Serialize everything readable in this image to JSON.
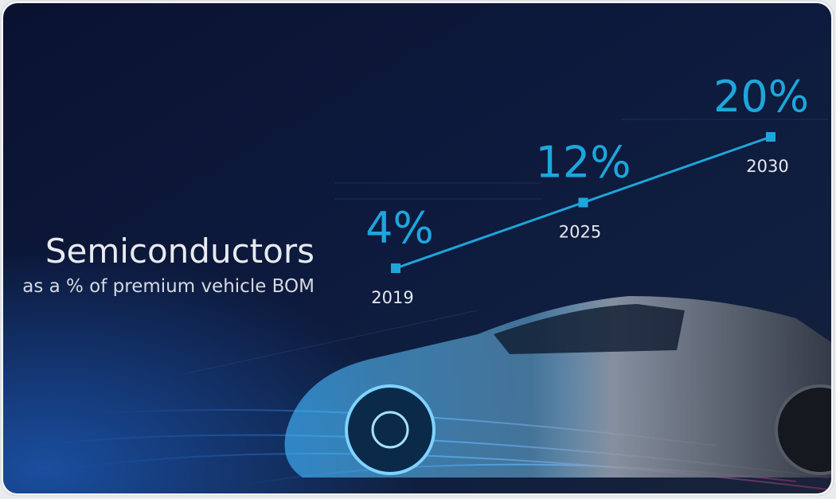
{
  "chart_data": {
    "type": "line",
    "title": "Semiconductors",
    "subtitle": "as a % of premium vehicle BOM",
    "categories": [
      "2019",
      "2025",
      "2030"
    ],
    "values": [
      4,
      12,
      20
    ],
    "value_labels": [
      "4%",
      "12%",
      "20%"
    ],
    "color": "#1ea6dc"
  }
}
